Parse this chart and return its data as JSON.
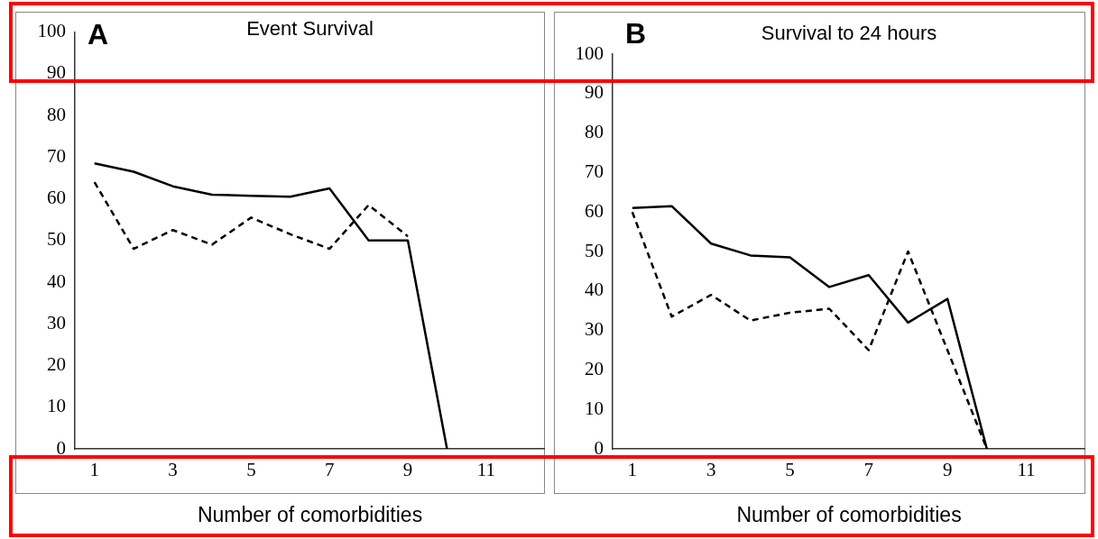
{
  "chart_data": [
    {
      "type": "line",
      "title": "Event Survival",
      "xlabel": "Number of comorbidities",
      "annotations": [
        "A"
      ],
      "xlim": [
        0.5,
        12.5
      ],
      "xticks": [
        1,
        3,
        5,
        7,
        9,
        11
      ],
      "ylim": [
        0,
        100
      ],
      "yticks": [
        0,
        10,
        20,
        30,
        40,
        50,
        60,
        70,
        80,
        90,
        100
      ],
      "grid": false,
      "legend": false,
      "marker": "none",
      "series": [
        {
          "color": "#000000",
          "line_style": "solid",
          "x": [
            1,
            2,
            3,
            4,
            5,
            6,
            7,
            8,
            9,
            10
          ],
          "values": [
            68.5,
            66.5,
            63,
            61,
            60.7,
            60.5,
            62.5,
            50,
            50,
            0
          ]
        },
        {
          "color": "#000000",
          "line_style": "dashed",
          "x": [
            1,
            2,
            3,
            4,
            5,
            6,
            7,
            8,
            9
          ],
          "values": [
            64,
            48,
            52.5,
            49,
            55.5,
            51.5,
            48,
            58.5,
            51
          ]
        }
      ]
    },
    {
      "type": "line",
      "title": "Survival to 24 hours",
      "xlabel": "Number of comorbidities",
      "annotations": [
        "B"
      ],
      "xlim": [
        0.5,
        12.5
      ],
      "xticks": [
        1,
        3,
        5,
        7,
        9,
        11
      ],
      "ylim": [
        0,
        100
      ],
      "yticks": [
        0,
        10,
        20,
        30,
        40,
        50,
        60,
        70,
        80,
        90,
        100
      ],
      "grid": false,
      "legend": false,
      "marker": "none",
      "series": [
        {
          "color": "#000000",
          "line_style": "solid",
          "x": [
            1,
            2,
            3,
            4,
            5,
            6,
            7,
            8,
            9,
            10
          ],
          "values": [
            61,
            61.5,
            52,
            49,
            48.5,
            41,
            44,
            32,
            38,
            0
          ]
        },
        {
          "color": "#000000",
          "line_style": "dashed",
          "x": [
            1,
            2,
            3,
            4,
            5,
            6,
            7,
            8,
            9,
            10
          ],
          "values": [
            60,
            33.5,
            39,
            32.5,
            34.5,
            35.5,
            25,
            50,
            25,
            0
          ]
        }
      ]
    }
  ]
}
